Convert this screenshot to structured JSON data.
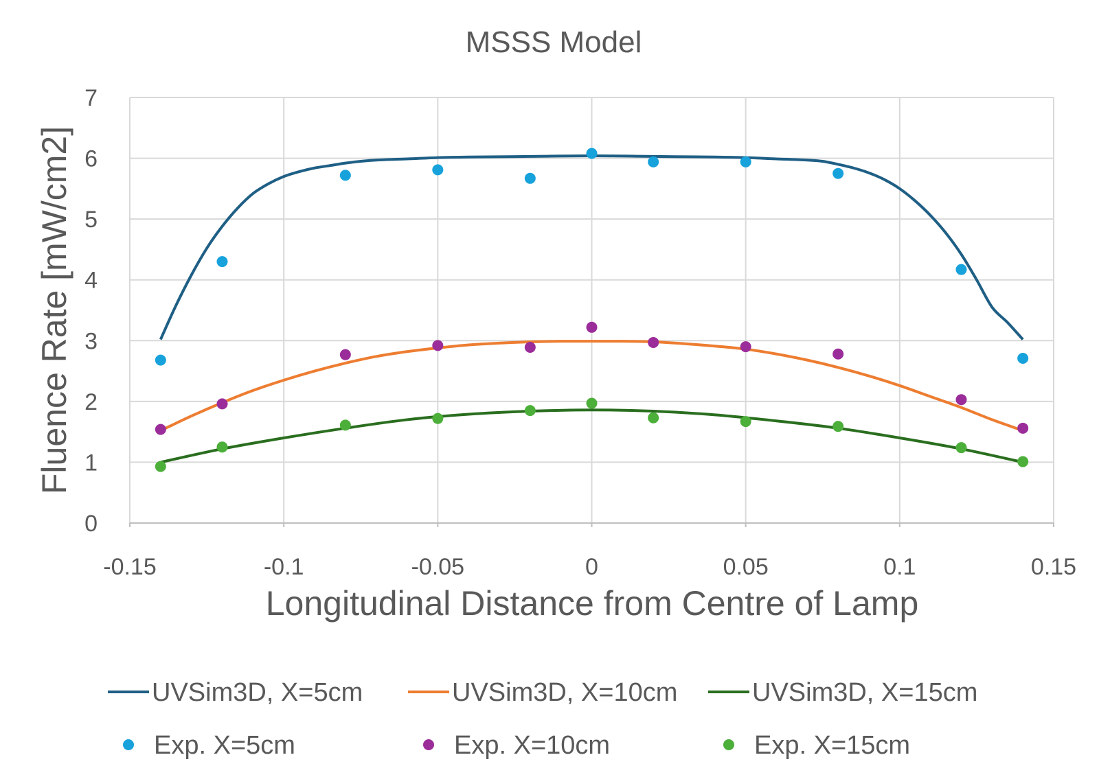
{
  "chart_data": {
    "type": "scatter",
    "title": "MSSS Model",
    "xlabel": "Longitudinal Distance from Centre of Lamp",
    "ylabel": "Fluence Rate [mW/cm2]",
    "xlim": [
      -0.15,
      0.15
    ],
    "ylim": [
      0,
      7
    ],
    "xticks": [
      -0.15,
      -0.1,
      -0.05,
      0,
      0.05,
      0.1,
      0.15
    ],
    "xtick_labels": [
      "-0.15",
      "-0.1",
      "-0.05",
      "0",
      "0.05",
      "0.1",
      "0.15"
    ],
    "yticks": [
      0,
      1,
      2,
      3,
      4,
      5,
      6,
      7
    ],
    "ytick_labels": [
      "0",
      "1",
      "2",
      "3",
      "4",
      "5",
      "6",
      "7"
    ],
    "grid": true,
    "legend_position": "bottom",
    "series": [
      {
        "name": "UVSim3D, X=5cm",
        "kind": "line",
        "color": "#1f5f85",
        "x": [
          -0.14,
          -0.135,
          -0.13,
          -0.125,
          -0.12,
          -0.115,
          -0.11,
          -0.105,
          -0.1,
          -0.095,
          -0.09,
          -0.085,
          -0.08,
          -0.075,
          -0.07,
          -0.06,
          -0.05,
          -0.04,
          -0.02,
          0,
          0.02,
          0.04,
          0.05,
          0.06,
          0.07,
          0.075,
          0.08,
          0.085,
          0.09,
          0.095,
          0.1,
          0.105,
          0.11,
          0.115,
          0.12,
          0.125,
          0.13,
          0.135,
          0.14
        ],
        "y": [
          3.02,
          3.58,
          4.08,
          4.52,
          4.88,
          5.18,
          5.42,
          5.58,
          5.7,
          5.78,
          5.84,
          5.88,
          5.92,
          5.95,
          5.97,
          5.99,
          6.01,
          6.02,
          6.03,
          6.04,
          6.03,
          6.02,
          6.01,
          5.99,
          5.97,
          5.95,
          5.9,
          5.84,
          5.76,
          5.65,
          5.5,
          5.3,
          5.06,
          4.77,
          4.42,
          4.0,
          3.55,
          3.3,
          3.02
        ]
      },
      {
        "name": "UVSim3D, X=10cm",
        "kind": "line",
        "color": "#ed7d31",
        "x": [
          -0.14,
          -0.13,
          -0.12,
          -0.11,
          -0.1,
          -0.09,
          -0.08,
          -0.07,
          -0.06,
          -0.05,
          -0.04,
          -0.03,
          -0.02,
          -0.01,
          0,
          0.01,
          0.02,
          0.03,
          0.04,
          0.05,
          0.06,
          0.07,
          0.08,
          0.09,
          0.1,
          0.11,
          0.12,
          0.13,
          0.14
        ],
        "y": [
          1.52,
          1.76,
          1.98,
          2.18,
          2.35,
          2.5,
          2.63,
          2.74,
          2.82,
          2.88,
          2.93,
          2.96,
          2.98,
          2.99,
          2.99,
          2.99,
          2.98,
          2.95,
          2.91,
          2.86,
          2.78,
          2.68,
          2.56,
          2.42,
          2.26,
          2.08,
          1.9,
          1.7,
          1.52
        ]
      },
      {
        "name": "UVSim3D, X=15cm",
        "kind": "line",
        "color": "#2a6e1f",
        "x": [
          -0.14,
          -0.12,
          -0.1,
          -0.08,
          -0.06,
          -0.04,
          -0.02,
          0,
          0.02,
          0.04,
          0.06,
          0.08,
          0.1,
          0.12,
          0.14
        ],
        "y": [
          1.0,
          1.22,
          1.4,
          1.56,
          1.7,
          1.79,
          1.84,
          1.86,
          1.84,
          1.78,
          1.68,
          1.56,
          1.4,
          1.22,
          1.0
        ]
      },
      {
        "name": "Exp. X=5cm",
        "kind": "scatter",
        "color": "#17a2dc",
        "x": [
          -0.14,
          -0.12,
          -0.08,
          -0.05,
          -0.02,
          0,
          0.02,
          0.05,
          0.08,
          0.12,
          0.14
        ],
        "y": [
          2.68,
          4.3,
          5.72,
          5.81,
          5.67,
          6.08,
          5.94,
          5.94,
          5.75,
          4.17,
          2.71
        ]
      },
      {
        "name": "Exp. X=10cm",
        "kind": "scatter",
        "color": "#9b2d9a",
        "x": [
          -0.14,
          -0.12,
          -0.08,
          -0.05,
          -0.02,
          0,
          0.02,
          0.05,
          0.08,
          0.12,
          0.14
        ],
        "y": [
          1.54,
          1.96,
          2.77,
          2.92,
          2.89,
          3.22,
          2.97,
          2.9,
          2.78,
          2.03,
          1.56
        ]
      },
      {
        "name": "Exp. X=15cm",
        "kind": "scatter",
        "color": "#4caf3a",
        "x": [
          -0.14,
          -0.12,
          -0.08,
          -0.05,
          -0.02,
          0,
          0.02,
          0.05,
          0.08,
          0.12,
          0.14
        ],
        "y": [
          0.93,
          1.25,
          1.61,
          1.72,
          1.85,
          1.97,
          1.73,
          1.67,
          1.59,
          1.24,
          1.01
        ]
      }
    ]
  }
}
